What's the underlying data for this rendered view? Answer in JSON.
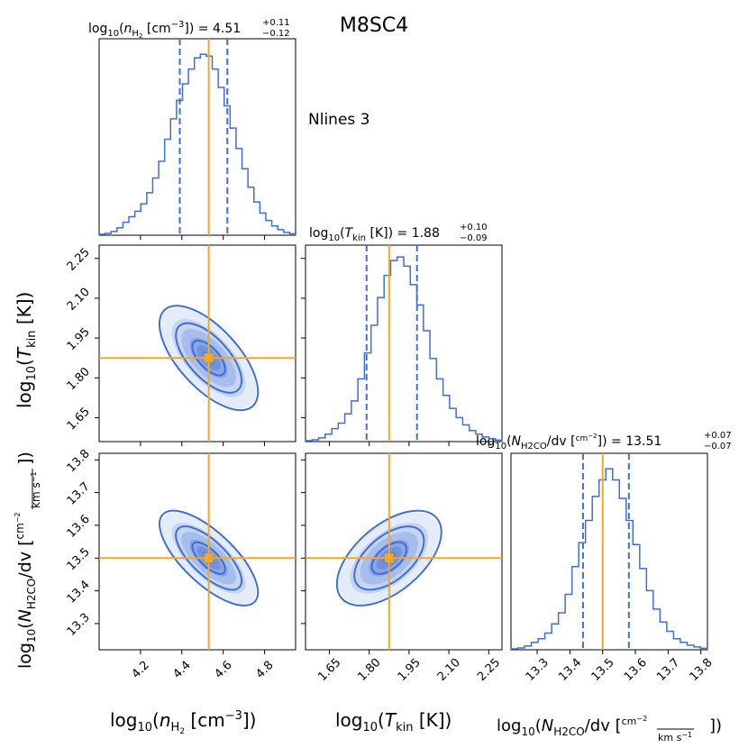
{
  "chart_data": {
    "type": "corner",
    "title": "M8SC4",
    "annotation": "Nlines 3",
    "parameters": [
      {
        "name": "log_nH2",
        "range": [
          4.0,
          4.95
        ],
        "ticks": [
          "4.2",
          "4.4",
          "4.6",
          "4.8"
        ],
        "tick_values": [
          4.2,
          4.4,
          4.6,
          4.8
        ],
        "truth": 4.53,
        "median": 4.51,
        "q_low": 4.39,
        "q_high": 4.62,
        "title_label": "log10(nH2 [cm^-3]) = 4.51 +0.11 -0.12",
        "title_plus": "+0.11",
        "title_minus": "−0.12",
        "title_value": "4.51",
        "axis_label": "log10(nH2 [cm^-3])",
        "hist": [
          0.005,
          0.01,
          0.02,
          0.04,
          0.07,
          0.1,
          0.13,
          0.17,
          0.23,
          0.31,
          0.4,
          0.52,
          0.63,
          0.73,
          0.82,
          0.9,
          0.96,
          0.98,
          0.97,
          0.9,
          0.8,
          0.7,
          0.58,
          0.47,
          0.36,
          0.26,
          0.18,
          0.12,
          0.08,
          0.05,
          0.03,
          0.015,
          0.008
        ]
      },
      {
        "name": "log_Tkin",
        "range": [
          1.56,
          2.3
        ],
        "ticks": [
          "1.65",
          "1.80",
          "1.95",
          "2.10",
          "2.25"
        ],
        "tick_values": [
          1.65,
          1.8,
          1.95,
          2.1,
          2.25
        ],
        "truth": 1.875,
        "median": 1.88,
        "q_low": 1.79,
        "q_high": 1.98,
        "title_label": "log10(Tkin [K]) = 1.88 +0.10 -0.09",
        "title_plus": "+0.10",
        "title_minus": "−0.09",
        "title_value": "1.88",
        "axis_label": "log10(Tkin [K])",
        "hist": [
          0.005,
          0.01,
          0.02,
          0.04,
          0.07,
          0.1,
          0.15,
          0.22,
          0.34,
          0.48,
          0.63,
          0.78,
          0.9,
          0.98,
          1.0,
          0.95,
          0.85,
          0.74,
          0.6,
          0.45,
          0.34,
          0.25,
          0.18,
          0.13,
          0.09,
          0.06,
          0.04,
          0.025,
          0.015,
          0.008
        ]
      },
      {
        "name": "log_NH2CO_dv",
        "range": [
          13.22,
          13.82
        ],
        "ticks": [
          "13.3",
          "13.4",
          "13.5",
          "13.6",
          "13.7",
          "13.8"
        ],
        "tick_values": [
          13.3,
          13.4,
          13.5,
          13.6,
          13.7,
          13.8
        ],
        "truth": 13.5,
        "median": 13.51,
        "q_low": 13.44,
        "q_high": 13.58,
        "title_label": "log10(NH2CO/dv [cm^-2 / km s^-1]) = 13.51 +0.07 -0.07",
        "title_plus": "+0.07",
        "title_minus": "−0.07",
        "title_value": "13.51",
        "axis_label": "log10(NH2CO/dv [cm^-2 / km s^-1])",
        "hist": [
          0.005,
          0.01,
          0.02,
          0.04,
          0.06,
          0.09,
          0.14,
          0.2,
          0.3,
          0.45,
          0.58,
          0.7,
          0.83,
          0.92,
          0.98,
          0.92,
          0.82,
          0.7,
          0.57,
          0.44,
          0.32,
          0.22,
          0.15,
          0.1,
          0.06,
          0.04,
          0.025,
          0.015,
          0.008
        ]
      }
    ],
    "correlations": [
      {
        "x": 0,
        "y": 1,
        "rho": -0.65,
        "contour_levels_sigma": [
          0.6,
          1.2,
          1.8
        ]
      },
      {
        "x": 0,
        "y": 2,
        "rho": -0.72,
        "contour_levels_sigma": [
          0.6,
          1.2,
          1.8
        ]
      },
      {
        "x": 1,
        "y": 2,
        "rho": 0.55,
        "contour_levels_sigma": [
          0.6,
          1.2,
          1.8
        ]
      }
    ],
    "colors": {
      "hist": "#3d6fd6",
      "truth": "#f5a623",
      "density": "#2a5fd0"
    }
  }
}
